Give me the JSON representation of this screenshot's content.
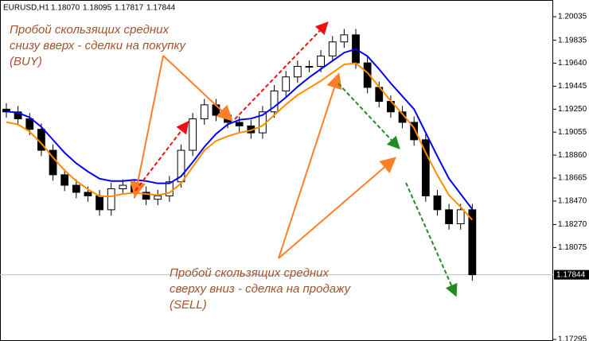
{
  "header": {
    "symbol": "EURUSD,H1",
    "ohlc": [
      "1.18070",
      "1.18095",
      "1.17817",
      "1.17844"
    ]
  },
  "annotations": [
    [
      "Пробой скользящих средних",
      "снизу вверх - сделки на покупку",
      "(BUY)"
    ],
    [
      "Пробой скользящих средних",
      "сверху вниз - сделка на продажу",
      "(SELL)"
    ]
  ],
  "chart_data": {
    "type": "candlestick",
    "ylim": [
      1.17295,
      1.2015
    ],
    "yticks": [
      1.20035,
      1.19835,
      {
        "value": 1.1964,
        "label": "1.19640"
      },
      1.19445,
      {
        "value": 1.1925,
        "label": "1.19250"
      },
      1.19055,
      {
        "value": 1.1886,
        "label": "1.18860"
      },
      1.18665,
      {
        "value": 1.1847,
        "label": "1.18470"
      },
      {
        "value": 1.1827,
        "label": "1.18270"
      },
      1.18075,
      1.17295
    ],
    "current_price": 1.17844,
    "up_color": "#ffffff",
    "down_color": "#000000",
    "open": [
      1.1925,
      1.19227,
      1.19168,
      1.19079,
      1.18901,
      1.18693,
      1.18604,
      1.18544,
      1.18514,
      1.18396,
      1.18574,
      1.18604,
      1.18544,
      1.18485,
      1.18514,
      1.18633,
      1.18901,
      1.19168,
      1.19287,
      1.19198,
      1.19138,
      1.19108,
      1.19049,
      1.19227,
      1.19405,
      1.19524,
      1.19613,
      1.19613,
      1.19702,
      1.19821,
      1.19881,
      1.19643,
      1.19435,
      1.19316,
      1.19227,
      1.19138,
      1.1899,
      1.18514,
      1.18396,
      1.18277,
      1.18396
    ],
    "high": [
      1.193,
      1.19277,
      1.19218,
      1.19129,
      1.18951,
      1.18743,
      1.18654,
      1.18594,
      1.18564,
      1.18624,
      1.18654,
      1.18654,
      1.18594,
      1.18564,
      1.18683,
      1.18951,
      1.19218,
      1.19337,
      1.19337,
      1.19248,
      1.19188,
      1.19158,
      1.19277,
      1.19455,
      1.19574,
      1.19663,
      1.19663,
      1.19752,
      1.19871,
      1.19931,
      1.19931,
      1.19693,
      1.19485,
      1.19366,
      1.19277,
      1.19188,
      1.1904,
      1.18564,
      1.18446,
      1.18446,
      1.18446
    ],
    "low": [
      1.19177,
      1.19118,
      1.19029,
      1.18851,
      1.18643,
      1.18554,
      1.18494,
      1.18464,
      1.18346,
      1.18346,
      1.18524,
      1.18494,
      1.18435,
      1.18435,
      1.18464,
      1.18583,
      1.18851,
      1.19118,
      1.19148,
      1.19088,
      1.19058,
      1.18999,
      1.18999,
      1.19177,
      1.19355,
      1.19474,
      1.19563,
      1.19563,
      1.19652,
      1.19771,
      1.19593,
      1.19385,
      1.19266,
      1.19177,
      1.19088,
      1.1894,
      1.18464,
      1.18346,
      1.18227,
      1.18227,
      1.17794
    ],
    "close": [
      1.19227,
      1.19168,
      1.19079,
      1.18901,
      1.18693,
      1.18604,
      1.18544,
      1.18514,
      1.18396,
      1.18574,
      1.18604,
      1.18544,
      1.18485,
      1.18514,
      1.18633,
      1.18901,
      1.19168,
      1.19287,
      1.19198,
      1.19138,
      1.19108,
      1.19049,
      1.19227,
      1.19405,
      1.19524,
      1.19613,
      1.19613,
      1.19702,
      1.19821,
      1.19881,
      1.19643,
      1.19435,
      1.19316,
      1.19227,
      1.19138,
      1.1899,
      1.18514,
      1.18396,
      1.18277,
      1.18396,
      1.17844
    ],
    "series": [
      {
        "color": "#0000ff",
        "values": [
          1.1923,
          1.1922,
          1.1918,
          1.191,
          1.1899,
          1.1888,
          1.1879,
          1.1872,
          1.1866,
          1.1864,
          1.1864,
          1.1865,
          1.1864,
          1.1862,
          1.1862,
          1.1868,
          1.188,
          1.1893,
          1.1904,
          1.1912,
          1.1916,
          1.1917,
          1.192,
          1.1927,
          1.1935,
          1.1944,
          1.1952,
          1.1959,
          1.1966,
          1.1973,
          1.1976,
          1.197,
          1.1959,
          1.1947,
          1.1936,
          1.1925,
          1.1905,
          1.1885,
          1.1866,
          1.1853,
          1.184
        ]
      },
      {
        "color": "#ff8c00",
        "values": [
          1.1914,
          1.1912,
          1.1906,
          1.1896,
          1.1884,
          1.1873,
          1.1864,
          1.1857,
          1.1851,
          1.1851,
          1.1853,
          1.1854,
          1.1853,
          1.1852,
          1.1854,
          1.1862,
          1.1876,
          1.189,
          1.1898,
          1.1902,
          1.1905,
          1.1907,
          1.1911,
          1.192,
          1.1929,
          1.1937,
          1.1943,
          1.1949,
          1.1956,
          1.1963,
          1.1964,
          1.1956,
          1.1944,
          1.1932,
          1.1921,
          1.1909,
          1.1888,
          1.1869,
          1.1852,
          1.1842,
          1.1831
        ]
      }
    ]
  }
}
